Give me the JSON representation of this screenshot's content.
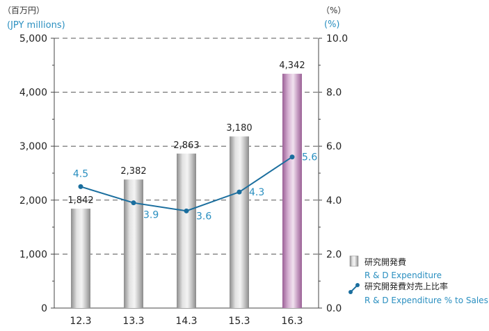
{
  "chart_data": {
    "type": "bar",
    "categories": [
      "12.3",
      "13.3",
      "14.3",
      "15.3",
      "16.3"
    ],
    "series": [
      {
        "name": "研究開発費",
        "name_en": "R & D Expenditure",
        "type": "bar",
        "axis": "left",
        "values": [
          1842,
          2382,
          2863,
          3180,
          4342
        ],
        "labels": [
          "1,842",
          "2,382",
          "2,863",
          "3,180",
          "4,342"
        ]
      },
      {
        "name": "研究開発費対売上比率",
        "name_en": "R & D Expenditure % to Sales",
        "type": "line",
        "axis": "right",
        "values": [
          4.5,
          3.9,
          3.6,
          4.3,
          5.6
        ],
        "labels": [
          "4.5",
          "3.9",
          "3.6",
          "4.3",
          "5.6"
        ]
      }
    ],
    "left_axis": {
      "unit_jp": "（百万円）",
      "unit_en": "(JPY millions)",
      "range": [
        0,
        5000
      ],
      "ticks": [
        0,
        1000,
        2000,
        3000,
        4000,
        5000
      ],
      "tick_labels": [
        "0",
        "1,000",
        "2,000",
        "3,000",
        "4,000",
        "5,000"
      ]
    },
    "right_axis": {
      "unit_jp": "（%）",
      "unit_en": "(%)",
      "range": [
        0,
        10
      ],
      "ticks": [
        0,
        2,
        4,
        6,
        8,
        10
      ],
      "tick_labels": [
        "0.0",
        "2.0",
        "4.0",
        "6.0",
        "8.0",
        "10.0"
      ]
    },
    "grid": "dashed horizontal",
    "legend": "bottom-right",
    "colors": {
      "bar": "#a8a8a8",
      "bar_highlight": "#b57fb0",
      "line": "#1a6e9e",
      "line_label": "#2a8fc0",
      "unit_en": "#2a8fc0"
    }
  }
}
